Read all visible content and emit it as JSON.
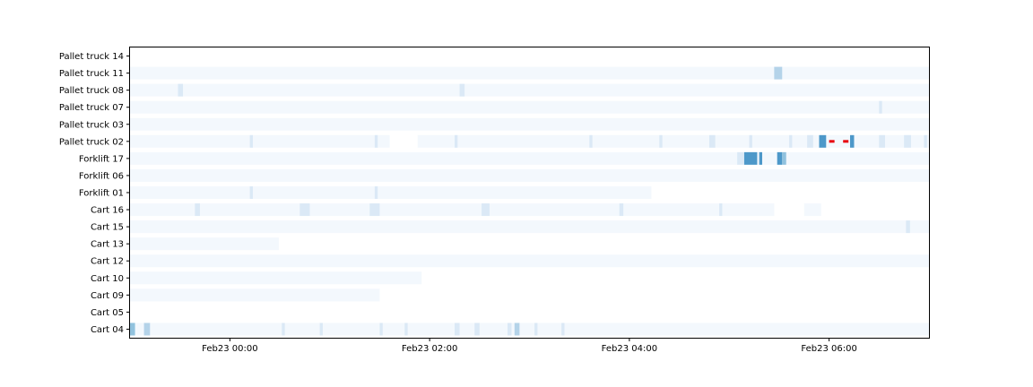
{
  "chart_data": {
    "type": "heatmap",
    "title": "",
    "xlabel": "",
    "ylabel": "",
    "x_unit": "hours since Feb23 00:00",
    "xlim": [
      -1.0,
      7.0
    ],
    "grid": false,
    "x_ticks": [
      {
        "value": 0,
        "label": "Feb23 00:00"
      },
      {
        "value": 2,
        "label": "Feb23 02:00"
      },
      {
        "value": 4,
        "label": "Feb23 04:00"
      },
      {
        "value": 6,
        "label": "Feb23 06:00"
      }
    ],
    "colors": {
      "low": "#f3f8fd",
      "light": "#dbe9f6",
      "mid": "#b4d3e9",
      "midhigh": "#91c2de",
      "high": "#4d98c9",
      "marker": "#e8000b",
      "axis": "#000000"
    },
    "rows": [
      {
        "label": "Pallet truck 14",
        "segments": []
      },
      {
        "label": "Pallet truck 11",
        "segments": [
          {
            "start": -1.0,
            "end": 7.0,
            "level": "low"
          },
          {
            "start": 5.45,
            "end": 5.53,
            "level": "mid"
          }
        ]
      },
      {
        "label": "Pallet truck 08",
        "segments": [
          {
            "start": -1.0,
            "end": 7.0,
            "level": "low"
          },
          {
            "start": -0.52,
            "end": -0.47,
            "level": "light"
          },
          {
            "start": 2.3,
            "end": 2.35,
            "level": "light"
          }
        ]
      },
      {
        "label": "Pallet truck 07",
        "segments": [
          {
            "start": -1.0,
            "end": 7.0,
            "level": "low"
          },
          {
            "start": 6.5,
            "end": 6.53,
            "level": "light"
          }
        ]
      },
      {
        "label": "Pallet truck 03",
        "segments": [
          {
            "start": -1.0,
            "end": 7.0,
            "level": "low"
          }
        ]
      },
      {
        "label": "Pallet truck 02",
        "segments": [
          {
            "start": -1.0,
            "end": 1.6,
            "level": "low"
          },
          {
            "start": 1.88,
            "end": 7.0,
            "level": "low"
          },
          {
            "start": 0.2,
            "end": 0.23,
            "level": "light"
          },
          {
            "start": 1.45,
            "end": 1.48,
            "level": "light"
          },
          {
            "start": 2.25,
            "end": 2.28,
            "level": "light"
          },
          {
            "start": 3.6,
            "end": 3.63,
            "level": "light"
          },
          {
            "start": 4.3,
            "end": 4.33,
            "level": "light"
          },
          {
            "start": 4.8,
            "end": 4.86,
            "level": "light"
          },
          {
            "start": 5.2,
            "end": 5.23,
            "level": "light"
          },
          {
            "start": 5.6,
            "end": 5.63,
            "level": "light"
          },
          {
            "start": 5.78,
            "end": 5.84,
            "level": "light"
          },
          {
            "start": 5.9,
            "end": 5.97,
            "level": "high"
          },
          {
            "start": 6.21,
            "end": 6.25,
            "level": "high"
          },
          {
            "start": 6.5,
            "end": 6.56,
            "level": "light"
          },
          {
            "start": 6.75,
            "end": 6.82,
            "level": "light"
          },
          {
            "start": 6.95,
            "end": 6.98,
            "level": "light"
          }
        ],
        "markers": [
          6.0,
          6.14
        ]
      },
      {
        "label": "Forklift 17",
        "segments": [
          {
            "start": -1.0,
            "end": 7.0,
            "level": "low"
          },
          {
            "start": 5.08,
            "end": 5.15,
            "level": "light"
          },
          {
            "start": 5.15,
            "end": 5.28,
            "level": "high"
          },
          {
            "start": 5.3,
            "end": 5.33,
            "level": "high"
          },
          {
            "start": 5.48,
            "end": 5.53,
            "level": "high"
          },
          {
            "start": 5.53,
            "end": 5.57,
            "level": "midhigh"
          }
        ]
      },
      {
        "label": "Forklift 06",
        "segments": [
          {
            "start": -1.0,
            "end": 7.0,
            "level": "low"
          }
        ]
      },
      {
        "label": "Forklift 01",
        "segments": [
          {
            "start": -1.0,
            "end": 4.22,
            "level": "low"
          },
          {
            "start": 0.2,
            "end": 0.23,
            "level": "light"
          },
          {
            "start": 1.45,
            "end": 1.48,
            "level": "light"
          }
        ]
      },
      {
        "label": "Cart 16",
        "segments": [
          {
            "start": -1.0,
            "end": 5.45,
            "level": "low"
          },
          {
            "start": 5.75,
            "end": 5.92,
            "level": "low"
          },
          {
            "start": -0.35,
            "end": -0.3,
            "level": "light"
          },
          {
            "start": 0.7,
            "end": 0.8,
            "level": "light"
          },
          {
            "start": 1.4,
            "end": 1.5,
            "level": "light"
          },
          {
            "start": 2.52,
            "end": 2.6,
            "level": "light"
          },
          {
            "start": 3.9,
            "end": 3.94,
            "level": "light"
          },
          {
            "start": 4.9,
            "end": 4.93,
            "level": "light"
          }
        ]
      },
      {
        "label": "Cart 15",
        "segments": [
          {
            "start": -1.0,
            "end": 7.0,
            "level": "low"
          },
          {
            "start": 6.77,
            "end": 6.81,
            "level": "light"
          }
        ]
      },
      {
        "label": "Cart 13",
        "segments": [
          {
            "start": -1.0,
            "end": 0.49,
            "level": "low"
          }
        ]
      },
      {
        "label": "Cart 12",
        "segments": [
          {
            "start": -1.0,
            "end": 7.0,
            "level": "low"
          }
        ]
      },
      {
        "label": "Cart 10",
        "segments": [
          {
            "start": -1.0,
            "end": 1.92,
            "level": "low"
          }
        ]
      },
      {
        "label": "Cart 09",
        "segments": [
          {
            "start": -1.0,
            "end": 1.5,
            "level": "low"
          }
        ]
      },
      {
        "label": "Cart 05",
        "segments": []
      },
      {
        "label": "Cart 04",
        "segments": [
          {
            "start": -1.0,
            "end": 7.0,
            "level": "low"
          },
          {
            "start": -1.0,
            "end": -0.95,
            "level": "midhigh"
          },
          {
            "start": -0.86,
            "end": -0.8,
            "level": "mid"
          },
          {
            "start": 0.52,
            "end": 0.55,
            "level": "light"
          },
          {
            "start": 0.9,
            "end": 0.93,
            "level": "light"
          },
          {
            "start": 1.5,
            "end": 1.53,
            "level": "light"
          },
          {
            "start": 1.75,
            "end": 1.78,
            "level": "light"
          },
          {
            "start": 2.25,
            "end": 2.3,
            "level": "light"
          },
          {
            "start": 2.45,
            "end": 2.5,
            "level": "light"
          },
          {
            "start": 2.78,
            "end": 2.82,
            "level": "light"
          },
          {
            "start": 2.85,
            "end": 2.9,
            "level": "mid"
          },
          {
            "start": 3.05,
            "end": 3.08,
            "level": "light"
          },
          {
            "start": 3.32,
            "end": 3.35,
            "level": "light"
          }
        ]
      }
    ]
  }
}
